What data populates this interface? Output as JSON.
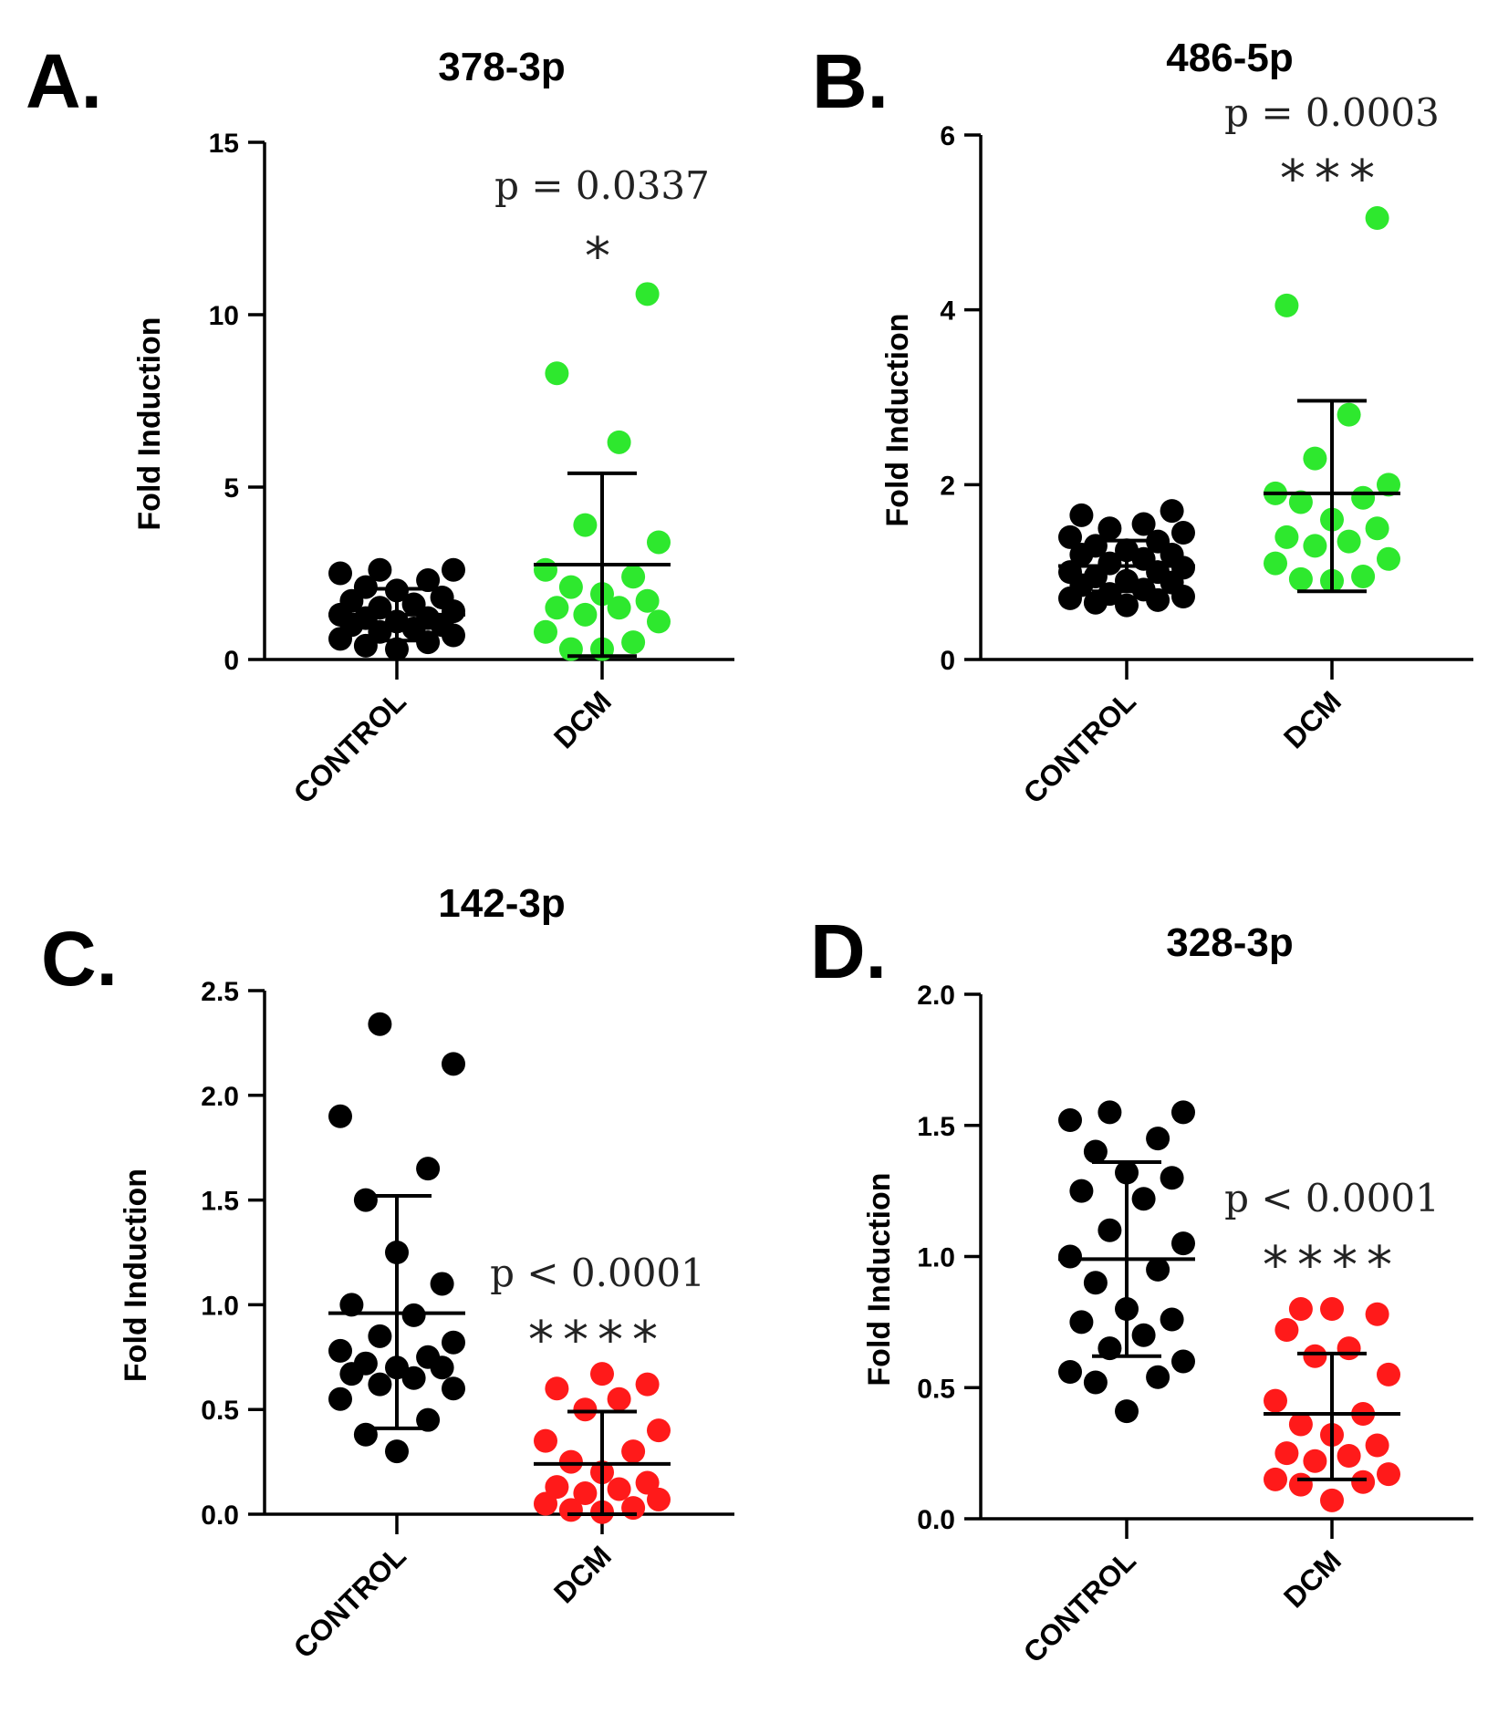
{
  "colors": {
    "control": "#000000",
    "dcm_up": "#2ee82e",
    "dcm_down": "#ff1a1a",
    "axis": "#000000",
    "text": "#222222"
  },
  "chart_data": [
    {
      "panel": "A.",
      "type": "scatter",
      "title": "378-3p",
      "ylabel": "Fold Induction",
      "ylim": [
        0,
        15
      ],
      "yticks": [
        0,
        5,
        10,
        15
      ],
      "ytick_labels": [
        "0",
        "5",
        "10",
        "15"
      ],
      "categories": [
        "CONTROL",
        "DCM"
      ],
      "pvalue": "p = 0.0337",
      "significance": "*",
      "series": [
        {
          "name": "CONTROL",
          "color": "control",
          "mean": 1.3,
          "sd_low": 0.55,
          "sd_high": 2.05,
          "values": [
            0.3,
            0.4,
            0.5,
            0.6,
            0.7,
            0.8,
            0.9,
            1.0,
            1.0,
            1.1,
            1.2,
            1.2,
            1.3,
            1.4,
            1.5,
            1.6,
            1.7,
            1.8,
            2.0,
            2.1,
            2.3,
            2.5,
            2.6,
            2.6
          ]
        },
        {
          "name": "DCM",
          "color": "dcm_up",
          "mean": 2.75,
          "sd_low": 0.1,
          "sd_high": 5.4,
          "values": [
            0.3,
            0.3,
            0.5,
            0.8,
            1.1,
            1.3,
            1.5,
            1.5,
            1.7,
            1.9,
            2.1,
            2.4,
            2.6,
            3.4,
            3.9,
            6.3,
            8.3,
            10.6
          ]
        }
      ]
    },
    {
      "panel": "B.",
      "type": "scatter",
      "title": "486-5p",
      "ylabel": "Fold Induction",
      "ylim": [
        0,
        6
      ],
      "yticks": [
        0,
        2,
        4,
        6
      ],
      "ytick_labels": [
        "0",
        "2",
        "4",
        "6"
      ],
      "categories": [
        "CONTROL",
        "DCM"
      ],
      "pvalue": "p = 0.0003",
      "significance": "***",
      "series": [
        {
          "name": "CONTROL",
          "color": "control",
          "mean": 1.07,
          "sd_low": 0.78,
          "sd_high": 1.36,
          "values": [
            0.62,
            0.65,
            0.68,
            0.7,
            0.72,
            0.75,
            0.8,
            0.85,
            0.88,
            0.9,
            0.95,
            1.0,
            1.0,
            1.05,
            1.1,
            1.15,
            1.2,
            1.2,
            1.25,
            1.3,
            1.35,
            1.4,
            1.45,
            1.5,
            1.55,
            1.65,
            1.7
          ]
        },
        {
          "name": "DCM",
          "color": "dcm_up",
          "mean": 1.9,
          "sd_low": 0.78,
          "sd_high": 2.96,
          "values": [
            0.9,
            0.92,
            0.95,
            1.1,
            1.15,
            1.3,
            1.35,
            1.4,
            1.5,
            1.6,
            1.8,
            1.85,
            1.9,
            2.0,
            2.3,
            2.8,
            4.05,
            5.05
          ]
        }
      ]
    },
    {
      "panel": "C.",
      "type": "scatter",
      "title": "142-3p",
      "ylabel": "Fold Induction",
      "ylim": [
        0,
        2.5
      ],
      "yticks": [
        0.0,
        0.5,
        1.0,
        1.5,
        2.0,
        2.5
      ],
      "ytick_labels": [
        "0.0",
        "0.5",
        "1.0",
        "1.5",
        "2.0",
        "2.5"
      ],
      "categories": [
        "CONTROL",
        "DCM"
      ],
      "pvalue": "p < 0.0001",
      "significance": "****",
      "series": [
        {
          "name": "CONTROL",
          "color": "control",
          "mean": 0.96,
          "sd_low": 0.41,
          "sd_high": 1.52,
          "values": [
            0.3,
            0.38,
            0.45,
            0.55,
            0.6,
            0.62,
            0.65,
            0.67,
            0.7,
            0.7,
            0.72,
            0.75,
            0.78,
            0.82,
            0.85,
            0.95,
            1.0,
            1.1,
            1.25,
            1.5,
            1.65,
            1.9,
            2.15,
            2.34
          ]
        },
        {
          "name": "DCM",
          "color": "dcm_down",
          "mean": 0.24,
          "sd_low": 0.0,
          "sd_high": 0.49,
          "values": [
            0.01,
            0.02,
            0.03,
            0.05,
            0.07,
            0.1,
            0.12,
            0.13,
            0.15,
            0.2,
            0.25,
            0.3,
            0.35,
            0.4,
            0.5,
            0.55,
            0.6,
            0.62,
            0.67
          ]
        }
      ]
    },
    {
      "panel": "D.",
      "type": "scatter",
      "title": "328-3p",
      "ylabel": "Fold Induction",
      "ylim": [
        0,
        2.0
      ],
      "yticks": [
        0.0,
        0.5,
        1.0,
        1.5,
        2.0
      ],
      "ytick_labels": [
        "0.0",
        "0.5",
        "1.0",
        "1.5",
        "2.0"
      ],
      "categories": [
        "CONTROL",
        "DCM"
      ],
      "pvalue": "p < 0.0001",
      "significance": "****",
      "series": [
        {
          "name": "CONTROL",
          "color": "control",
          "mean": 0.99,
          "sd_low": 0.62,
          "sd_high": 1.36,
          "values": [
            0.41,
            0.52,
            0.54,
            0.56,
            0.6,
            0.65,
            0.7,
            0.75,
            0.76,
            0.8,
            0.9,
            0.95,
            1.0,
            1.05,
            1.1,
            1.22,
            1.25,
            1.3,
            1.32,
            1.4,
            1.45,
            1.52,
            1.55,
            1.55
          ]
        },
        {
          "name": "DCM",
          "color": "dcm_down",
          "mean": 0.4,
          "sd_low": 0.15,
          "sd_high": 0.63,
          "values": [
            0.07,
            0.13,
            0.14,
            0.15,
            0.17,
            0.22,
            0.24,
            0.25,
            0.28,
            0.32,
            0.36,
            0.4,
            0.45,
            0.55,
            0.62,
            0.65,
            0.72,
            0.78,
            0.8,
            0.8
          ]
        }
      ]
    }
  ]
}
